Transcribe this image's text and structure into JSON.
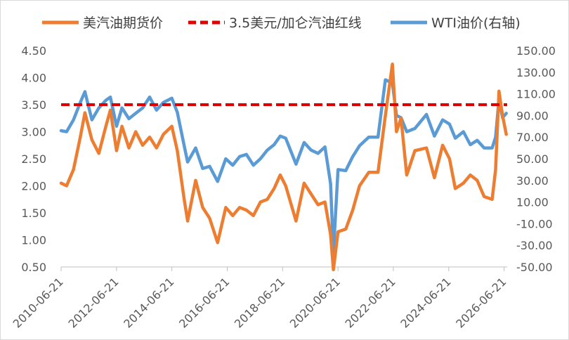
{
  "chart_data": {
    "type": "line",
    "legend": {
      "placement": "top",
      "entries": [
        {
          "name": "美汽油期货价",
          "color": "#ED7D31",
          "style": "solid"
        },
        {
          "name": "3.5美元/加仑汽油红线",
          "color": "#E00000",
          "style": "dashed"
        },
        {
          "name": "WTI油价(右轴)",
          "color": "#5B9BD5",
          "style": "solid"
        }
      ]
    },
    "x_axis": {
      "type": "date",
      "range": [
        "2010-06-21",
        "2026-08-01"
      ],
      "ticks": [
        "2010-06-21",
        "2012-06-21",
        "2014-06-21",
        "2016-06-21",
        "2018-06-21",
        "2020-06-21",
        "2022-06-21",
        "2024-06-21",
        "2026-06-21"
      ]
    },
    "y_left": {
      "range": [
        0.5,
        4.5
      ],
      "ticks": [
        "0.50",
        "1.00",
        "1.50",
        "2.00",
        "2.50",
        "3.00",
        "3.50",
        "4.00",
        "4.50"
      ]
    },
    "y_right": {
      "range": [
        -50,
        150
      ],
      "ticks": [
        "-50.00",
        "-30.00",
        "-10.00",
        "10.00",
        "30.00",
        "50.00",
        "70.00",
        "90.00",
        "110.00",
        "130.00",
        "150.00"
      ]
    },
    "grid": false,
    "series": [
      {
        "name": "美汽油期货价",
        "axis": "left",
        "color": "#ED7D31",
        "points": [
          [
            "2010-06-21",
            2.05
          ],
          [
            "2010-09-01",
            2.0
          ],
          [
            "2010-12-01",
            2.3
          ],
          [
            "2011-03-01",
            2.9
          ],
          [
            "2011-05-01",
            3.35
          ],
          [
            "2011-08-01",
            2.85
          ],
          [
            "2011-11-01",
            2.6
          ],
          [
            "2012-02-01",
            3.1
          ],
          [
            "2012-04-01",
            3.4
          ],
          [
            "2012-06-21",
            2.65
          ],
          [
            "2012-09-01",
            3.1
          ],
          [
            "2012-12-01",
            2.7
          ],
          [
            "2013-03-01",
            3.0
          ],
          [
            "2013-06-01",
            2.75
          ],
          [
            "2013-09-01",
            2.9
          ],
          [
            "2013-12-01",
            2.7
          ],
          [
            "2014-03-01",
            2.95
          ],
          [
            "2014-06-21",
            3.1
          ],
          [
            "2014-09-01",
            2.65
          ],
          [
            "2014-12-01",
            1.75
          ],
          [
            "2015-01-15",
            1.35
          ],
          [
            "2015-05-01",
            2.1
          ],
          [
            "2015-08-01",
            1.6
          ],
          [
            "2015-11-01",
            1.4
          ],
          [
            "2016-02-15",
            0.95
          ],
          [
            "2016-06-01",
            1.6
          ],
          [
            "2016-09-01",
            1.45
          ],
          [
            "2016-12-01",
            1.6
          ],
          [
            "2017-03-01",
            1.55
          ],
          [
            "2017-06-01",
            1.45
          ],
          [
            "2017-09-01",
            1.7
          ],
          [
            "2017-12-01",
            1.75
          ],
          [
            "2018-03-01",
            1.95
          ],
          [
            "2018-05-21",
            2.2
          ],
          [
            "2018-08-01",
            2.0
          ],
          [
            "2018-12-15",
            1.35
          ],
          [
            "2019-04-01",
            2.05
          ],
          [
            "2019-07-01",
            1.85
          ],
          [
            "2019-10-01",
            1.65
          ],
          [
            "2020-01-01",
            1.7
          ],
          [
            "2020-03-15",
            1.1
          ],
          [
            "2020-04-21",
            0.45
          ],
          [
            "2020-06-21",
            1.15
          ],
          [
            "2020-10-01",
            1.2
          ],
          [
            "2021-01-01",
            1.55
          ],
          [
            "2021-04-01",
            2.0
          ],
          [
            "2021-08-01",
            2.25
          ],
          [
            "2021-12-01",
            2.25
          ],
          [
            "2022-03-08",
            3.3
          ],
          [
            "2022-06-09",
            4.25
          ],
          [
            "2022-08-01",
            3.0
          ],
          [
            "2022-10-01",
            3.25
          ],
          [
            "2022-12-15",
            2.2
          ],
          [
            "2023-04-01",
            2.65
          ],
          [
            "2023-09-01",
            2.7
          ],
          [
            "2023-12-15",
            2.15
          ],
          [
            "2024-04-01",
            2.75
          ],
          [
            "2024-07-01",
            2.5
          ],
          [
            "2024-09-15",
            1.95
          ],
          [
            "2025-01-01",
            2.05
          ],
          [
            "2025-04-01",
            2.2
          ],
          [
            "2025-07-01",
            2.1
          ],
          [
            "2025-10-01",
            1.8
          ],
          [
            "2026-01-15",
            1.75
          ],
          [
            "2026-03-01",
            2.3
          ],
          [
            "2026-04-15",
            3.75
          ],
          [
            "2026-06-01",
            3.3
          ],
          [
            "2026-07-20",
            2.95
          ]
        ]
      },
      {
        "name": "3.5美元/加仑汽油红线",
        "axis": "left",
        "color": "#E00000",
        "points": [
          [
            "2010-06-21",
            3.5
          ],
          [
            "2026-08-01",
            3.5
          ]
        ]
      },
      {
        "name": "WTI油价(右轴)",
        "axis": "right",
        "color": "#5B9BD5",
        "points": [
          [
            "2010-06-21",
            76
          ],
          [
            "2010-09-01",
            75
          ],
          [
            "2010-12-01",
            86
          ],
          [
            "2011-03-01",
            102
          ],
          [
            "2011-05-01",
            112
          ],
          [
            "2011-08-01",
            86
          ],
          [
            "2011-11-01",
            97
          ],
          [
            "2012-02-01",
            104
          ],
          [
            "2012-04-01",
            107
          ],
          [
            "2012-06-21",
            80
          ],
          [
            "2012-09-01",
            97
          ],
          [
            "2012-12-01",
            87
          ],
          [
            "2013-03-01",
            92
          ],
          [
            "2013-06-01",
            97
          ],
          [
            "2013-09-01",
            107
          ],
          [
            "2013-12-01",
            95
          ],
          [
            "2014-03-01",
            102
          ],
          [
            "2014-06-21",
            106
          ],
          [
            "2014-09-01",
            93
          ],
          [
            "2014-12-01",
            62
          ],
          [
            "2015-01-15",
            47
          ],
          [
            "2015-05-01",
            60
          ],
          [
            "2015-08-01",
            41
          ],
          [
            "2015-11-01",
            43
          ],
          [
            "2016-02-15",
            29
          ],
          [
            "2016-06-01",
            50
          ],
          [
            "2016-09-01",
            44
          ],
          [
            "2016-12-01",
            52
          ],
          [
            "2017-03-01",
            54
          ],
          [
            "2017-06-01",
            44
          ],
          [
            "2017-09-01",
            50
          ],
          [
            "2017-12-01",
            58
          ],
          [
            "2018-03-01",
            63
          ],
          [
            "2018-05-21",
            71
          ],
          [
            "2018-08-01",
            69
          ],
          [
            "2018-12-15",
            45
          ],
          [
            "2019-04-01",
            65
          ],
          [
            "2019-07-01",
            58
          ],
          [
            "2019-10-01",
            55
          ],
          [
            "2020-01-01",
            61
          ],
          [
            "2020-03-15",
            27
          ],
          [
            "2020-04-21",
            -37
          ],
          [
            "2020-06-21",
            40
          ],
          [
            "2020-10-01",
            39
          ],
          [
            "2021-01-01",
            52
          ],
          [
            "2021-04-01",
            62
          ],
          [
            "2021-08-01",
            70
          ],
          [
            "2021-12-01",
            70
          ],
          [
            "2022-03-08",
            123
          ],
          [
            "2022-06-09",
            120
          ],
          [
            "2022-08-01",
            90
          ],
          [
            "2022-10-01",
            88
          ],
          [
            "2022-12-15",
            75
          ],
          [
            "2023-04-01",
            78
          ],
          [
            "2023-09-01",
            91
          ],
          [
            "2023-12-15",
            71
          ],
          [
            "2024-04-01",
            86
          ],
          [
            "2024-07-01",
            82
          ],
          [
            "2024-09-15",
            69
          ],
          [
            "2025-01-01",
            75
          ],
          [
            "2025-04-01",
            63
          ],
          [
            "2025-07-01",
            67
          ],
          [
            "2025-10-01",
            60
          ],
          [
            "2026-01-15",
            60
          ],
          [
            "2026-03-01",
            70
          ],
          [
            "2026-04-15",
            105
          ],
          [
            "2026-06-01",
            88
          ],
          [
            "2026-07-20",
            92
          ]
        ]
      }
    ]
  }
}
